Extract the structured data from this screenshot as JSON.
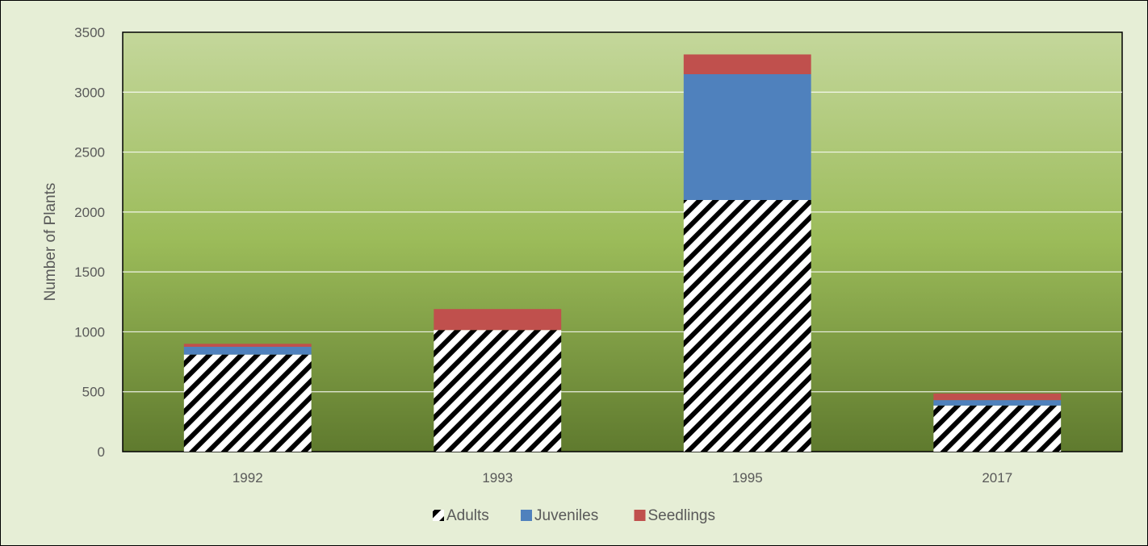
{
  "chart_data": {
    "type": "bar",
    "stacked": true,
    "title": "",
    "xlabel": "",
    "ylabel": "Number of Plants",
    "ylim": [
      0,
      3500
    ],
    "yticks": [
      0,
      500,
      1000,
      1500,
      2000,
      2500,
      3000,
      3500
    ],
    "categories": [
      "1992",
      "1993",
      "1995",
      "2017"
    ],
    "series": [
      {
        "name": "Adults",
        "values": [
          810,
          1015,
          2100,
          385
        ],
        "color": "#ffffff",
        "pattern": "diagonal-hatch-black"
      },
      {
        "name": "Juveniles",
        "values": [
          65,
          0,
          1050,
          45
        ],
        "color": "#4f81bd"
      },
      {
        "name": "Seedlings",
        "values": [
          25,
          175,
          165,
          55
        ],
        "color": "#c0504d"
      }
    ],
    "grid": true,
    "legend_position": "bottom",
    "plot_background": "#9bbb59"
  }
}
